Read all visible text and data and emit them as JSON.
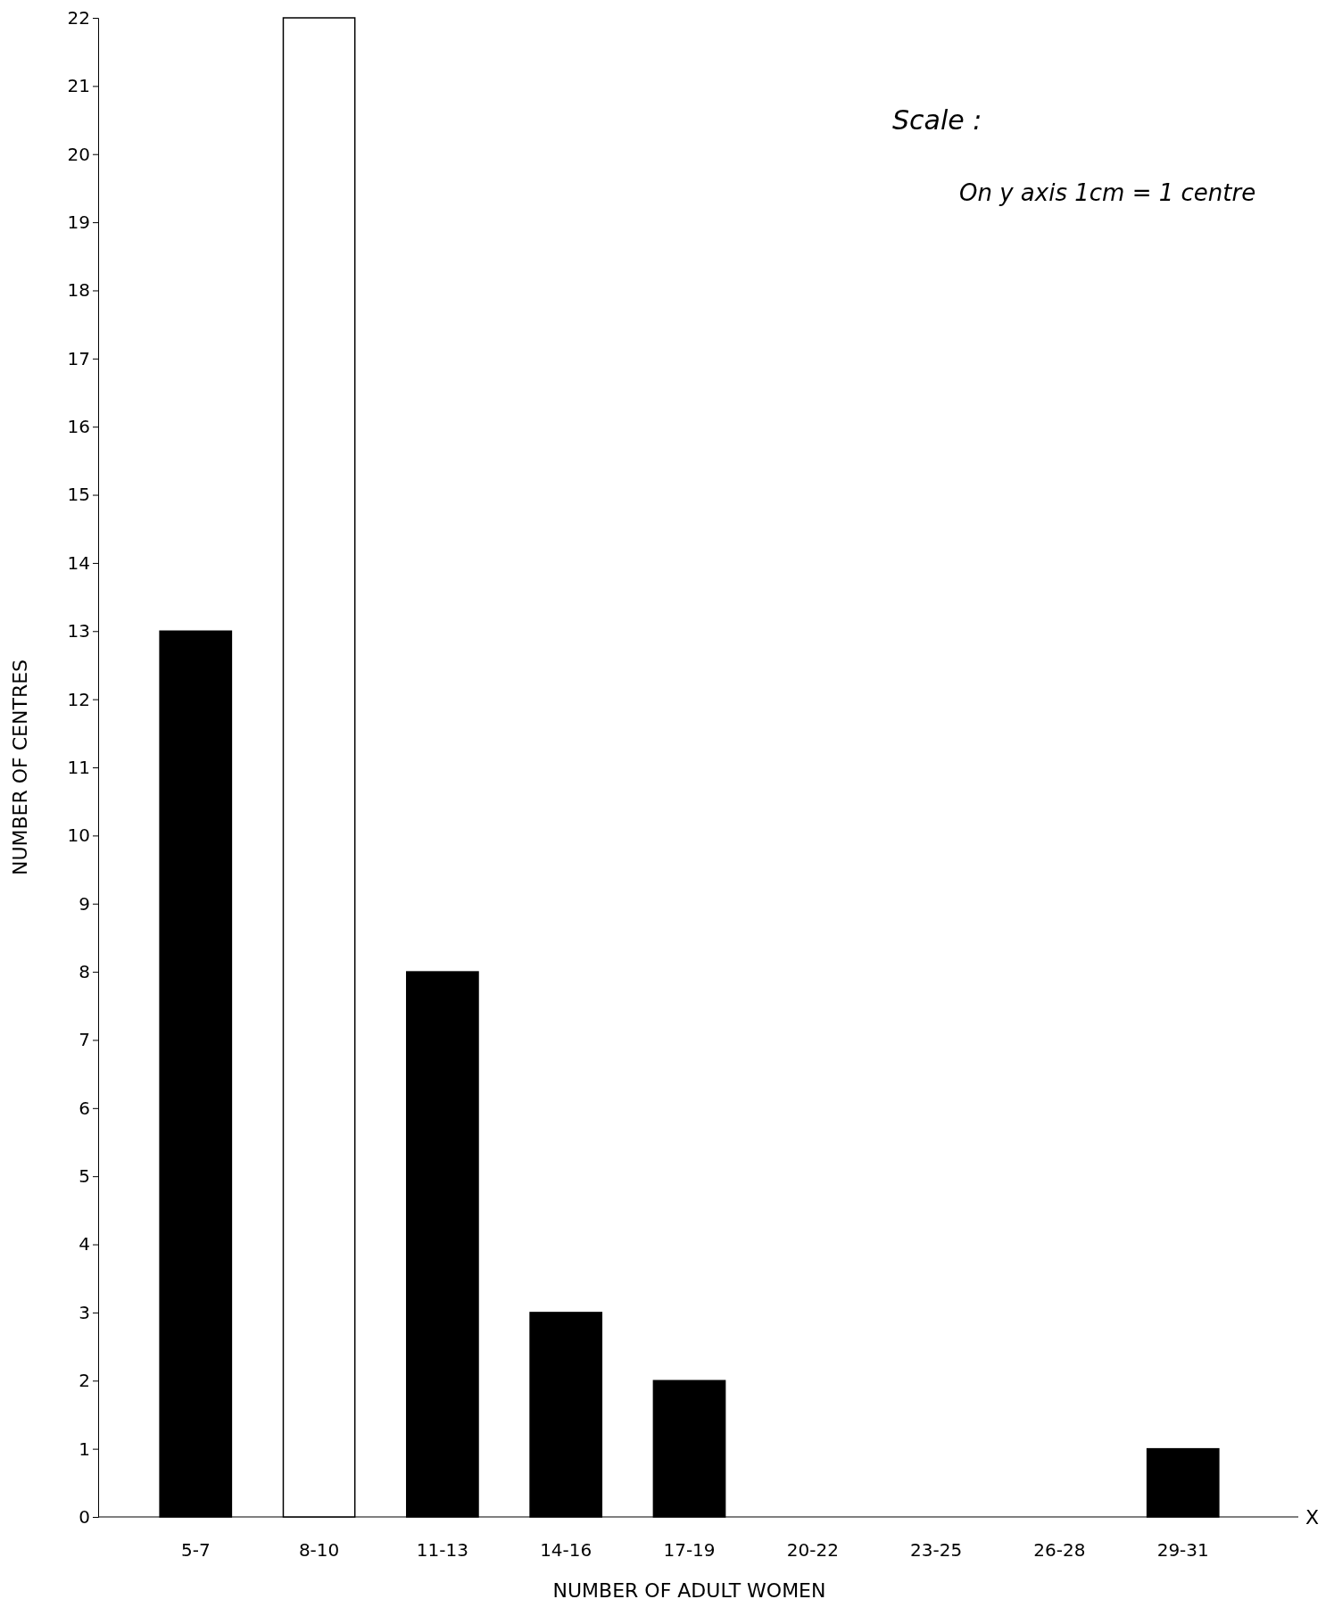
{
  "chart_data": {
    "type": "bar",
    "xlabel": "NUMBER OF ADULT WOMEN",
    "ylabel": "NUMBER OF CENTRES",
    "categories": [
      "5-7",
      "8-10",
      "11-13",
      "14-16",
      "17-19",
      "20-22",
      "23-25",
      "26-28",
      "29-31"
    ],
    "values": [
      13,
      22,
      8,
      3,
      2,
      0,
      0,
      0,
      1
    ],
    "colors": [
      "#000000",
      "#ffffff",
      "#000000",
      "#000000",
      "#000000",
      "#000000",
      "#000000",
      "#000000",
      "#000000"
    ],
    "ylim": [
      0,
      22
    ],
    "yticks": [
      0,
      1,
      2,
      3,
      4,
      5,
      6,
      7,
      8,
      9,
      10,
      11,
      12,
      13,
      14,
      15,
      16,
      17,
      18,
      19,
      20,
      21,
      22
    ],
    "annotations": [
      "Scale :",
      "On y axis 1cm = 1 centre",
      "X"
    ]
  }
}
